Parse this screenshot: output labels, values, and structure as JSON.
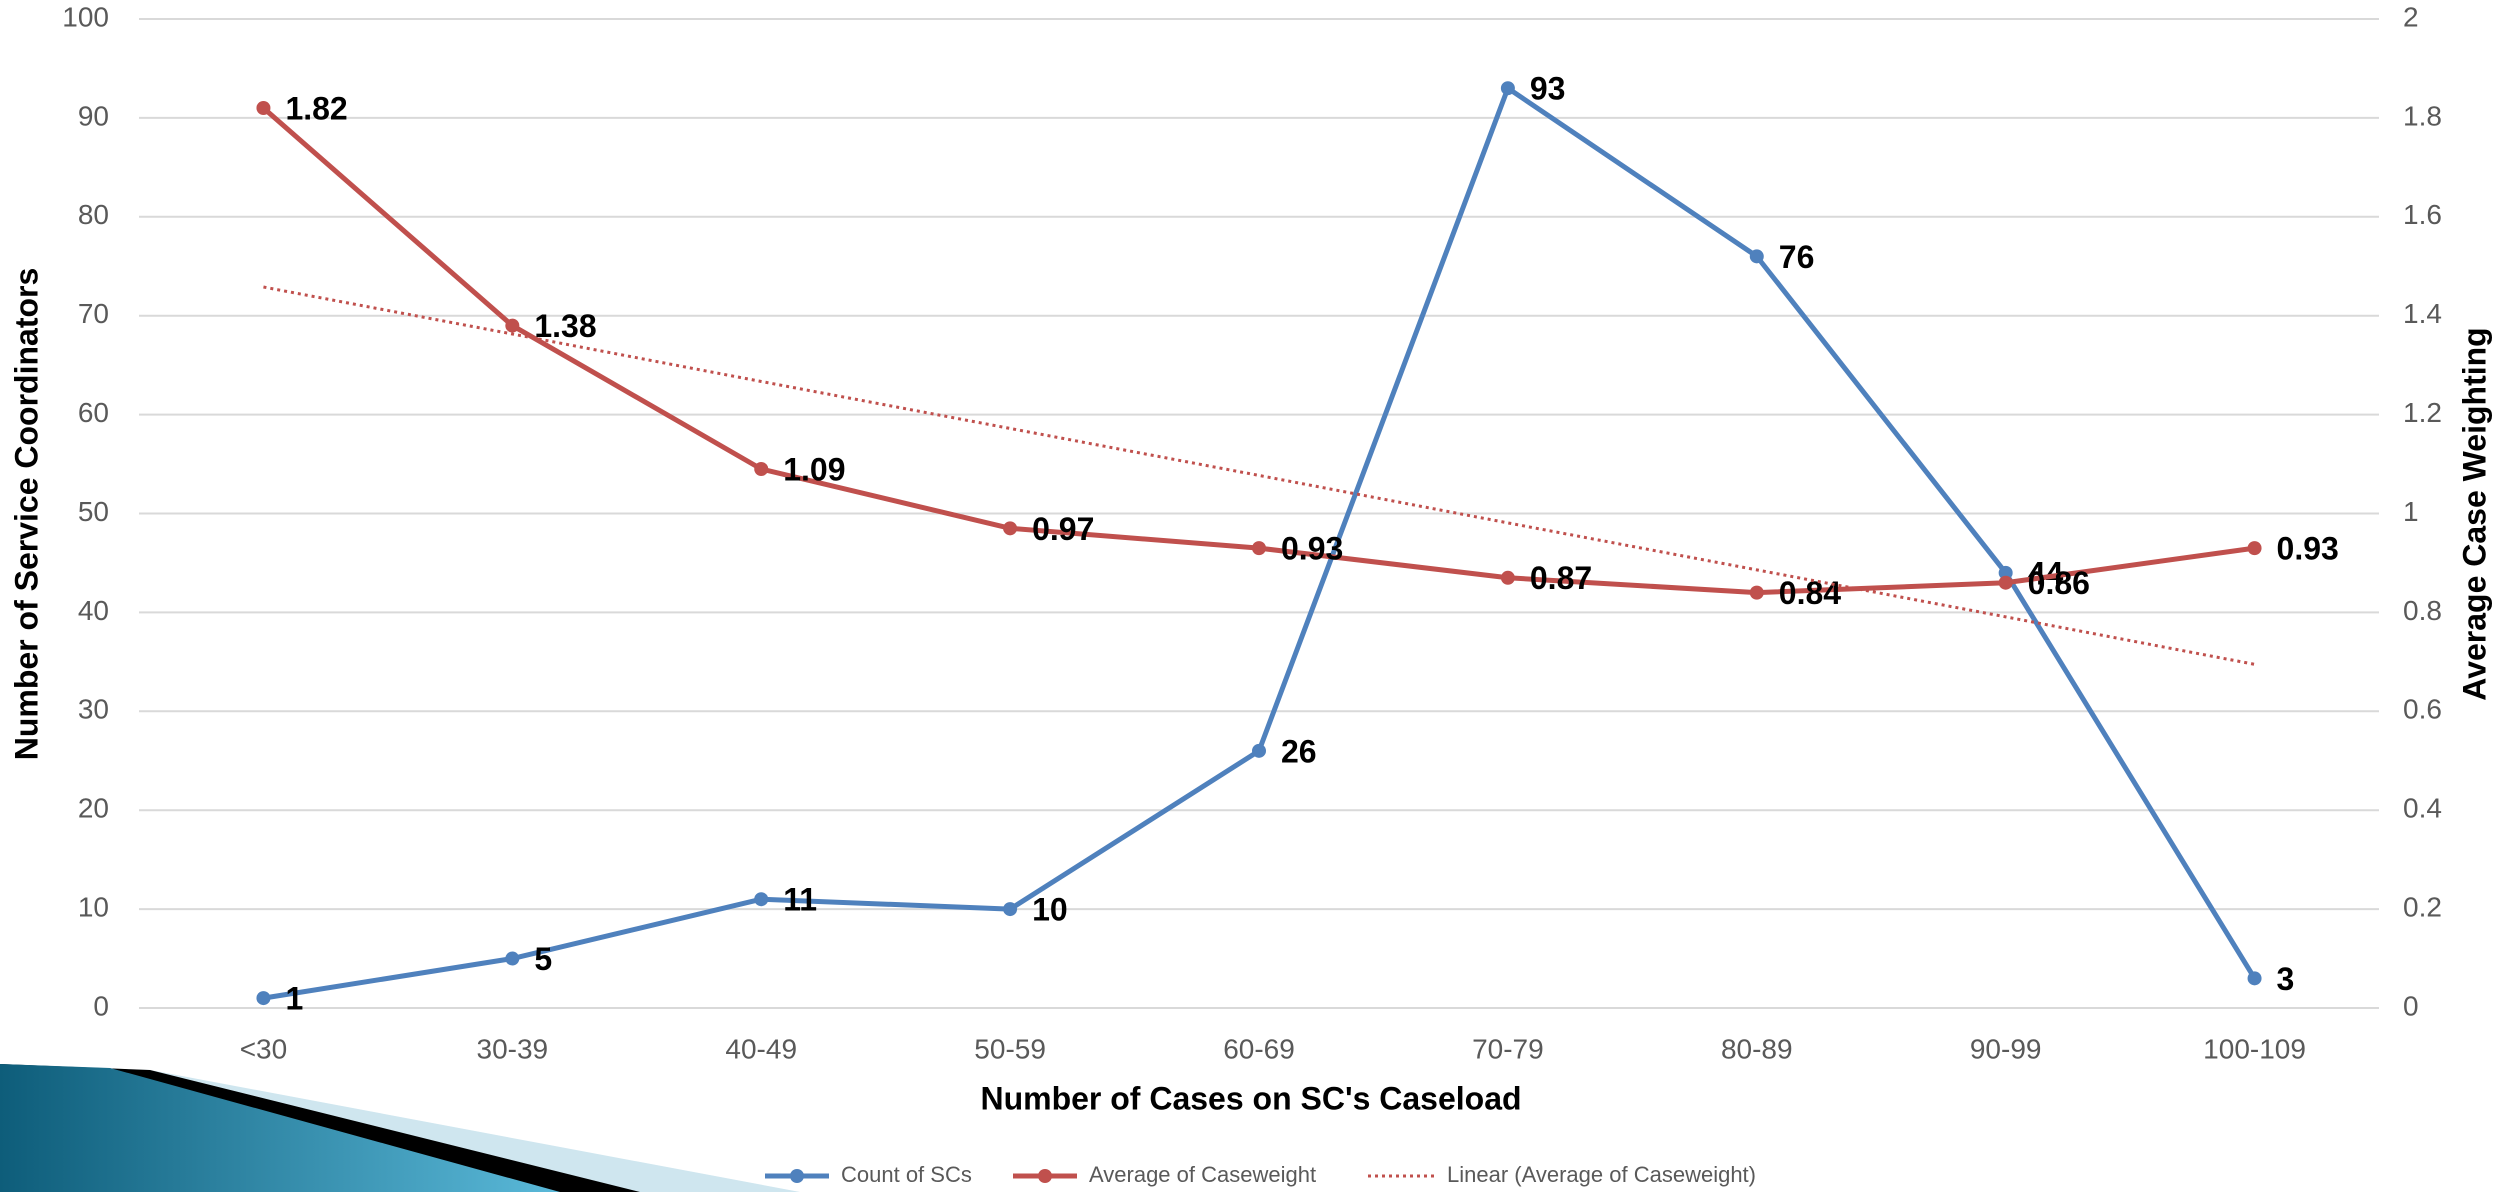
{
  "chart_data": {
    "type": "line",
    "x_label": "Number of Cases on SC's Caseload",
    "y_label": "Number of Service Coordinators",
    "y2_label": "Average Case Weighting",
    "categories": [
      "<30",
      "30-39",
      "40-49",
      "50-59",
      "60-69",
      "70-79",
      "80-89",
      "90-99",
      "100-109"
    ],
    "series": [
      {
        "name": "Count of SCs",
        "color": "#4f81bd",
        "values": [
          1,
          5,
          11,
          10,
          26,
          93,
          76,
          44,
          3
        ],
        "data_labels": true
      },
      {
        "name": "Average of Caseweight",
        "color": "#c0504d",
        "values": [
          1.82,
          1.38,
          1.09,
          0.97,
          0.93,
          0.87,
          0.84,
          0.86,
          0.93
        ],
        "axis": "y2",
        "data_labels": true
      },
      {
        "name": "Linear (Average of Caseweight)",
        "color": "#c0504d",
        "values": [
          1.458,
          1.363,
          1.267,
          1.172,
          1.077,
          0.981,
          0.886,
          0.791,
          0.695
        ],
        "axis": "y2",
        "line_style": "dotted"
      }
    ],
    "ylim": [
      0,
      100
    ],
    "yticks": [
      0,
      10,
      20,
      30,
      40,
      50,
      60,
      70,
      80,
      90,
      100
    ],
    "y2lim": [
      0,
      2
    ],
    "y2ticks": [
      0,
      0.2,
      0.4,
      0.6,
      0.8,
      1,
      1.2,
      1.4,
      1.6,
      1.8,
      2
    ],
    "grid": true,
    "legend": "bottom"
  }
}
